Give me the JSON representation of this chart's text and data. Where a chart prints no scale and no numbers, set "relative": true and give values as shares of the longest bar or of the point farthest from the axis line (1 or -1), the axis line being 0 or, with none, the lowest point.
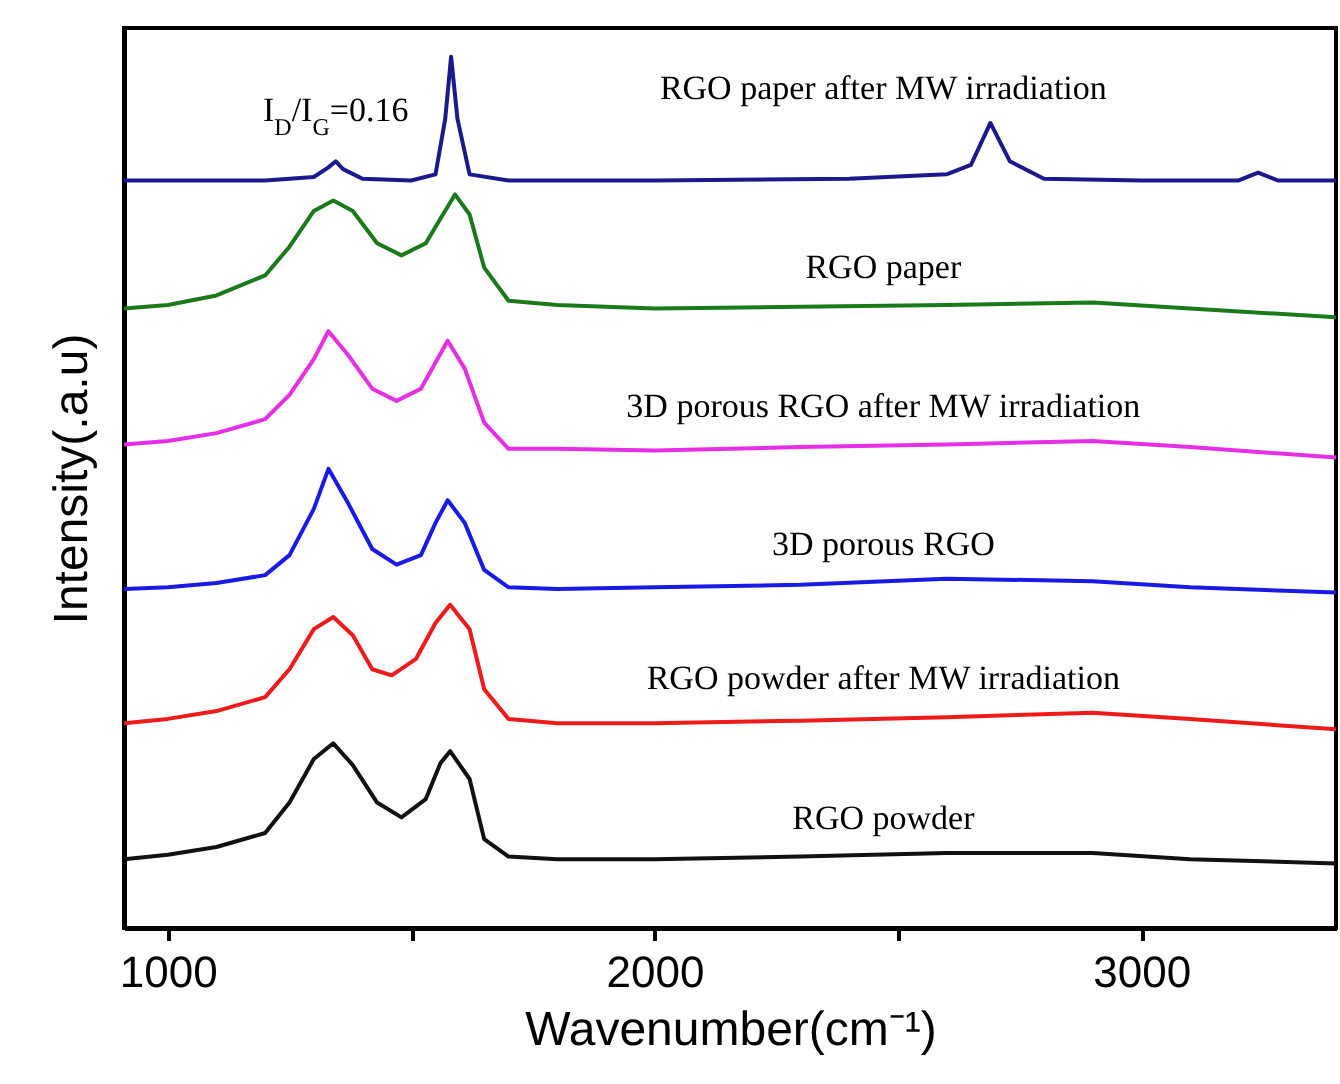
{
  "chart_data": {
    "type": "line",
    "relative": true,
    "xlabel": "Wavenumber(cm⁻¹)",
    "ylabel": "Intensity(.a.u)",
    "xlim": [
      910,
      3400
    ],
    "xticks": [
      1000,
      {
        "value": 1500,
        "label": null
      },
      2000,
      {
        "value": 2500,
        "label": null
      },
      3000
    ],
    "annotations": [
      {
        "text": "I$_{D}$/I$_{G}$=0.16",
        "x": 1345,
        "y": 0.88
      }
    ],
    "series": [
      {
        "name": "RGO paper after MW irradiation",
        "color": "#1a1a8c",
        "x": [
          910,
          1200,
          1300,
          1330,
          1345,
          1360,
          1400,
          1500,
          1550,
          1570,
          1582,
          1595,
          1620,
          1700,
          2000,
          2400,
          2600,
          2650,
          2690,
          2730,
          2800,
          3000,
          3200,
          3240,
          3280,
          3400
        ],
        "values": [
          0.858,
          0.858,
          0.862,
          0.873,
          0.88,
          0.871,
          0.86,
          0.858,
          0.865,
          0.929,
          1.0,
          0.929,
          0.865,
          0.858,
          0.858,
          0.86,
          0.865,
          0.876,
          0.924,
          0.88,
          0.86,
          0.858,
          0.858,
          0.867,
          0.858,
          0.858
        ]
      },
      {
        "name": "RGO paper",
        "color": "#1a7a1a",
        "x": [
          910,
          1000,
          1100,
          1200,
          1250,
          1300,
          1340,
          1380,
          1430,
          1480,
          1530,
          1560,
          1590,
          1620,
          1650,
          1700,
          1800,
          2000,
          2300,
          2600,
          2900,
          3100,
          3400
        ],
        "values": [
          0.711,
          0.715,
          0.726,
          0.749,
          0.782,
          0.823,
          0.835,
          0.823,
          0.786,
          0.772,
          0.786,
          0.814,
          0.842,
          0.819,
          0.758,
          0.72,
          0.715,
          0.711,
          0.713,
          0.715,
          0.718,
          0.711,
          0.701
        ]
      },
      {
        "name": "3D porous RGO after MW irradiation",
        "color": "#e62ee6",
        "x": [
          910,
          1000,
          1100,
          1200,
          1250,
          1300,
          1330,
          1370,
          1420,
          1470,
          1520,
          1550,
          1575,
          1610,
          1650,
          1700,
          1800,
          2000,
          2300,
          2600,
          2900,
          3100,
          3400
        ],
        "values": [
          0.555,
          0.559,
          0.568,
          0.584,
          0.612,
          0.653,
          0.685,
          0.658,
          0.619,
          0.605,
          0.619,
          0.649,
          0.674,
          0.642,
          0.58,
          0.55,
          0.55,
          0.548,
          0.552,
          0.555,
          0.559,
          0.552,
          0.54
        ]
      },
      {
        "name": "3D porous RGO",
        "color": "#1a1ae6",
        "x": [
          910,
          1000,
          1100,
          1200,
          1250,
          1300,
          1330,
          1370,
          1420,
          1470,
          1520,
          1550,
          1575,
          1610,
          1650,
          1700,
          1800,
          2000,
          2300,
          2600,
          2900,
          3100,
          3400
        ],
        "values": [
          0.389,
          0.391,
          0.396,
          0.405,
          0.428,
          0.481,
          0.527,
          0.488,
          0.435,
          0.417,
          0.428,
          0.465,
          0.491,
          0.465,
          0.411,
          0.391,
          0.389,
          0.391,
          0.394,
          0.401,
          0.398,
          0.391,
          0.385
        ]
      },
      {
        "name": "RGO powder after MW irradiation",
        "color": "#f01a1a",
        "x": [
          910,
          1000,
          1100,
          1200,
          1250,
          1300,
          1340,
          1380,
          1420,
          1460,
          1510,
          1550,
          1580,
          1620,
          1650,
          1700,
          1800,
          2000,
          2300,
          2600,
          2900,
          3100,
          3400
        ],
        "values": [
          0.235,
          0.24,
          0.249,
          0.265,
          0.297,
          0.343,
          0.357,
          0.336,
          0.297,
          0.29,
          0.309,
          0.35,
          0.371,
          0.343,
          0.274,
          0.24,
          0.235,
          0.235,
          0.238,
          0.242,
          0.247,
          0.24,
          0.228
        ]
      },
      {
        "name": "RGO powder",
        "color": "#111111",
        "x": [
          910,
          1000,
          1100,
          1200,
          1250,
          1300,
          1340,
          1380,
          1430,
          1480,
          1530,
          1560,
          1580,
          1620,
          1650,
          1700,
          1800,
          2000,
          2300,
          2600,
          2900,
          3100,
          3400
        ],
        "values": [
          0.079,
          0.084,
          0.093,
          0.109,
          0.144,
          0.194,
          0.212,
          0.187,
          0.144,
          0.127,
          0.148,
          0.189,
          0.203,
          0.171,
          0.102,
          0.082,
          0.079,
          0.079,
          0.082,
          0.086,
          0.086,
          0.079,
          0.074
        ]
      }
    ]
  }
}
